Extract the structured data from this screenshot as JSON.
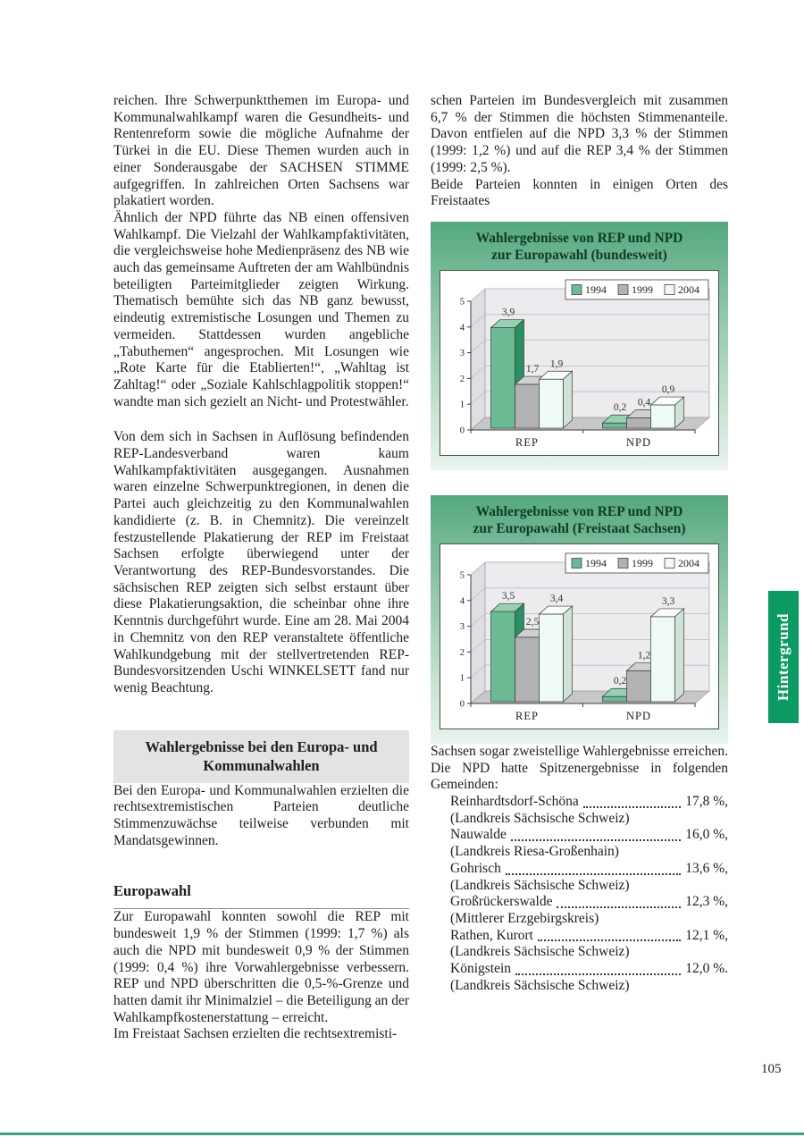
{
  "page": {
    "number": "105"
  },
  "side_tab": {
    "label": "Hintergrund",
    "color": "#0b9b62"
  },
  "left_column": {
    "paragraphs": [
      "reichen. Ihre Schwerpunktthemen im Europa- und Kommunalwahlkampf waren die Gesundheits- und Rentenreform sowie die mögliche Aufnahme der Türkei in die EU. Diese Themen wurden auch in einer Sonderausgabe der SACHSEN STIMME aufgegriffen. In zahlreichen Orten Sachsens war plakatiert worden.",
      "Ähnlich der NPD führte das NB einen offensiven Wahlkampf. Die Vielzahl der Wahlkampfaktivitäten, die vergleichsweise hohe Medienpräsenz des NB wie auch das gemeinsame Auftreten der am Wahlbündnis beteiligten Parteimitglieder zeigten Wirkung. Thematisch bemühte sich das NB ganz bewusst, eindeutig extremistische Losungen und Themen zu vermeiden. Stattdessen wurden angebliche „Tabuthemen“ angesprochen. Mit Losungen wie „Rote Karte für die Etablierten!“, „Wahltag ist Zahltag!“ oder „Soziale Kahlschlagpolitik stoppen!“ wandte man sich gezielt an Nicht- und Protestwähler.",
      "Von dem sich in Sachsen in Auflösung befindenden REP-Landesverband waren kaum Wahlkampfaktivitäten ausgegangen. Ausnahmen waren einzelne Schwerpunktregionen, in denen die Partei auch gleichzeitig zu den Kommunalwahlen kandidierte (z. B. in Chemnitz). Die vereinzelt festzustellende Plakatierung der REP im Freistaat Sachsen erfolgte überwiegend unter der Verantwortung des REP-Bundesvorstandes. Die sächsischen REP zeigten sich selbst erstaunt über diese Plakatierungsaktion, die scheinbar ohne ihre Kenntnis durchgeführt wurde. Eine am 28. Mai 2004 in Chemnitz von den REP veranstaltete öffentliche Wahlkundgebung mit der stellvertretenden REP-Bundesvorsitzenden Uschi WINKELSETT fand nur wenig Beachtung."
    ],
    "section_heading": "Wahlergebnisse bei den Europa- und Kommunalwahlen",
    "intro_paragraph": "Bei den Europa- und Kommunalwahlen erzielten die rechtsextremistischen Parteien deutliche Stimmenzuwächse teilweise verbunden mit Mandatsgewinnen.",
    "subheading": "Europawahl",
    "europawahl_paragraph": "Zur Europawahl konnten sowohl die REP mit bundesweit 1,9 % der Stimmen (1999: 1,7 %) als auch die NPD mit bundesweit 0,9 % der Stimmen (1999: 0,4 %) ihre Vorwahlergebnisse verbessern. REP und NPD überschritten die 0,5-%-Grenze und hatten damit ihr Minimalziel – die Beteiligung an der Wahlkampfkostenerstattung – erreicht.",
    "europawahl_continuation": "Im Freistaat Sachsen erzielten die rechtsextremisti-"
  },
  "right_column": {
    "top_paragraph": "schen Parteien im Bundesvergleich mit zusammen 6,7 % der Stimmen die höchsten Stimmenanteile. Davon entfielen auf die NPD 3,3 % der Stimmen (1999: 1,2 %) und auf die REP 3,4 % der Stimmen (1999: 2,5 %).",
    "chart_lead_in": "Beide Parteien konnten in einigen Orten des Freistaates",
    "chart_follow_up": "Sachsen sogar zweistellige Wahlergebnisse erreichen. Die NPD hatte Spitzenergebnisse in folgenden Gemeinden:",
    "gemeinden": [
      {
        "name": "Reinhardtsdorf-Schöna",
        "value": "17,8 %,",
        "district": "(Landkreis Sächsische Schweiz)"
      },
      {
        "name": "Nauwalde",
        "value": "16,0 %,",
        "district": "(Landkreis Riesa-Großenhain)"
      },
      {
        "name": "Gohrisch",
        "value": "13,6 %,",
        "district": "(Landkreis Sächsische Schweiz)"
      },
      {
        "name": "Großrückerswalde",
        "value": "12,3 %,",
        "district": "(Mittlerer Erzgebirgskreis)"
      },
      {
        "name": "Rathen, Kurort",
        "value": "12,1 %,",
        "district": "(Landkreis Sächsische Schweiz)"
      },
      {
        "name": "Königstein",
        "value": "12,0 %.",
        "district": "(Landkreis Sächsische Schweiz)"
      }
    ]
  },
  "chart_data": [
    {
      "type": "bar",
      "title": "Wahlergebnisse von REP und NPD zur Europawahl (bundesweit)",
      "title_line1": "Wahlergebnisse von REP und NPD",
      "title_line2": "zur Europawahl (bundesweit)",
      "categories": [
        "REP",
        "NPD"
      ],
      "series": [
        {
          "name": "1994",
          "values": [
            3.9,
            0.2
          ],
          "labels": [
            "3,9",
            "0,2"
          ],
          "front": "#6cba93",
          "top": "#96d2b2",
          "side": "#2a8f62"
        },
        {
          "name": "1999",
          "values": [
            1.7,
            0.4
          ],
          "labels": [
            "1,7",
            "0,4"
          ],
          "front": "#b2b2b4",
          "top": "#d0d0d2",
          "side": "#87878a"
        },
        {
          "name": "2004",
          "values": [
            1.9,
            0.9
          ],
          "labels": [
            "1,9",
            "0,9"
          ],
          "front": "#f0faf4",
          "top": "#f8fdfa",
          "side": "#cfe3d7"
        }
      ],
      "ylim": [
        0,
        5
      ],
      "yticks": [
        0,
        1,
        2,
        3,
        4,
        5
      ],
      "legend": [
        "1994",
        "1999",
        "2004"
      ],
      "legend_position": "top-right",
      "grid": true
    },
    {
      "type": "bar",
      "title": "Wahlergebnisse von REP und NPD zur Europawahl (Freistaat Sachsen)",
      "title_line1": "Wahlergebnisse von REP und NPD",
      "title_line2": "zur Europawahl (Freistaat Sachsen)",
      "categories": [
        "REP",
        "NPD"
      ],
      "series": [
        {
          "name": "1994",
          "values": [
            3.5,
            0.2
          ],
          "labels": [
            "3,5",
            "0,2"
          ],
          "front": "#6cba93",
          "top": "#96d2b2",
          "side": "#2a8f62"
        },
        {
          "name": "1999",
          "values": [
            2.5,
            1.2
          ],
          "labels": [
            "2,5",
            "1,2"
          ],
          "front": "#b2b2b4",
          "top": "#d0d0d2",
          "side": "#87878a"
        },
        {
          "name": "2004",
          "values": [
            3.4,
            3.3
          ],
          "labels": [
            "3,4",
            "3,3"
          ],
          "front": "#f0faf4",
          "top": "#f8fdfa",
          "side": "#cfe3d7"
        }
      ],
      "ylim": [
        0,
        5
      ],
      "yticks": [
        0,
        1,
        2,
        3,
        4,
        5
      ],
      "legend": [
        "1994",
        "1999",
        "2004"
      ],
      "legend_position": "top-right",
      "grid": true
    }
  ]
}
